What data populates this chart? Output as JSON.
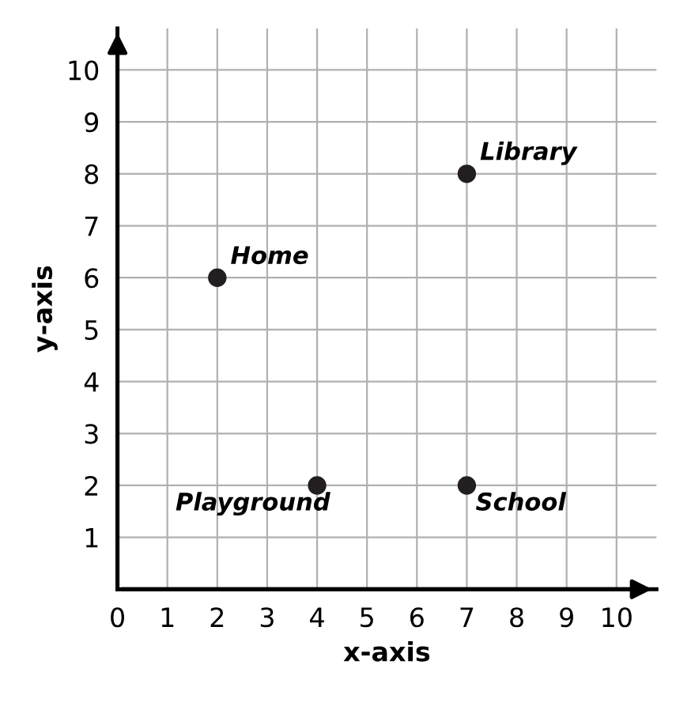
{
  "chart_data": {
    "type": "scatter",
    "xlabel": "x-axis",
    "ylabel": "y-axis",
    "x": [
      2,
      7,
      4,
      7
    ],
    "series": [
      {
        "color": "#231f20",
        "values": [
          6,
          8,
          2,
          2
        ]
      }
    ],
    "annotations": [
      {
        "text": "Home",
        "x": 2,
        "y": 6
      },
      {
        "text": "Library",
        "x": 7,
        "y": 8
      },
      {
        "text": "Playground",
        "x": 4,
        "y": 2
      },
      {
        "text": "School",
        "x": 7,
        "y": 2
      }
    ],
    "xlim": [
      0,
      10.8
    ],
    "ylim": [
      0,
      10.8
    ],
    "xticks": [
      0,
      1,
      2,
      3,
      4,
      5,
      6,
      7,
      8,
      9,
      10
    ],
    "yticks": [
      1,
      2,
      3,
      4,
      5,
      6,
      7,
      8,
      9,
      10
    ],
    "grid": true,
    "marker": "circle",
    "legend": false
  }
}
